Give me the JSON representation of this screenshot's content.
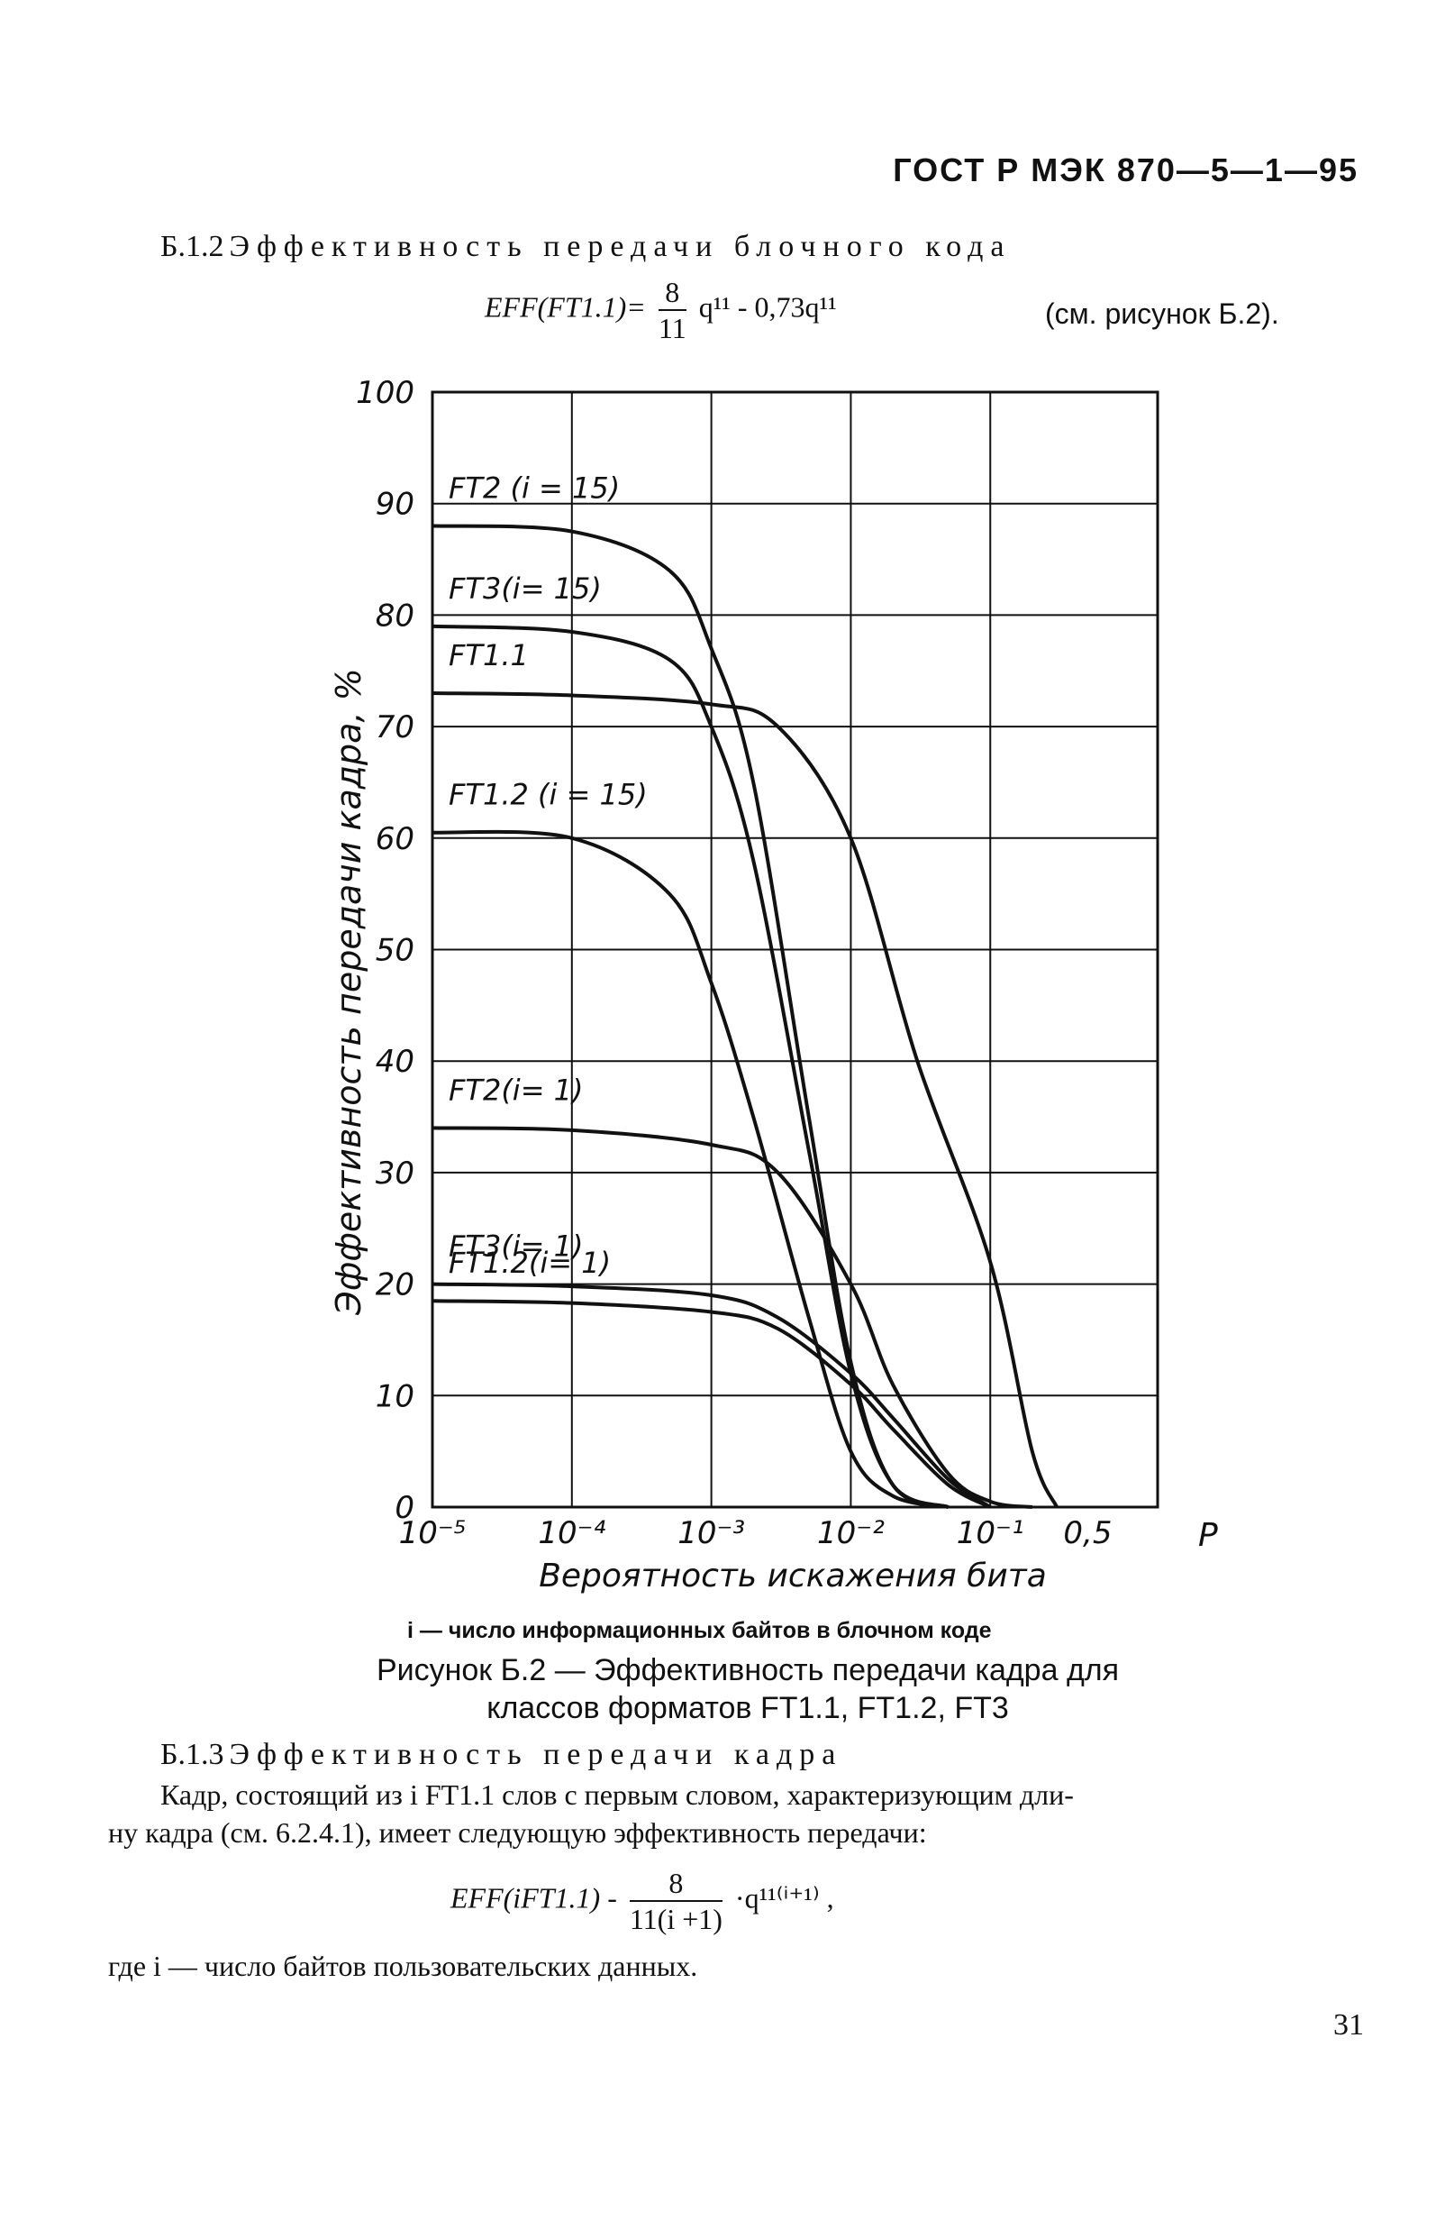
{
  "header": {
    "standard": "ГОСТ Р МЭК 870—5—1—95"
  },
  "section_b12": {
    "number": "Б.1.2",
    "title": "Эффективность передачи блочного кода",
    "formula_lhs": "EFF(FT1.1)=",
    "frac_num": "8",
    "frac_den": "11",
    "formula_rest": "q¹¹ - 0,73q¹¹",
    "reference": "(см. рисунок Б.2)."
  },
  "chart_data": {
    "type": "line",
    "ylabel": "Эффективность передачи кадра, %",
    "xlabel": "Вероятность искажения бита",
    "x_axis_unit": "P",
    "x_scale": "log",
    "xlim": [
      1e-05,
      0.5
    ],
    "ylim": [
      0,
      100
    ],
    "grid": true,
    "y_ticks": [
      "0",
      "10",
      "20",
      "30",
      "40",
      "50",
      "60",
      "70",
      "80",
      "90",
      "100"
    ],
    "x_ticks": [
      "10⁻⁵",
      "10⁻⁴",
      "10⁻³",
      "10⁻²",
      "10⁻¹",
      "0,5"
    ],
    "series": [
      {
        "name": "FT2 (i = 15)",
        "x": [
          1e-05,
          0.0001,
          0.0005,
          0.001,
          0.002,
          0.005,
          0.01,
          0.02,
          0.05
        ],
        "y": [
          88,
          87.5,
          84,
          77,
          65,
          35,
          13,
          2,
          0
        ]
      },
      {
        "name": "FT3 (i = 15)",
        "x": [
          1e-05,
          0.0001,
          0.0005,
          0.001,
          0.002,
          0.005,
          0.01,
          0.02,
          0.05
        ],
        "y": [
          79,
          78.5,
          76,
          70,
          58,
          32,
          12,
          2,
          0
        ]
      },
      {
        "name": "FT1.1",
        "x": [
          1e-05,
          0.0001,
          0.001,
          0.003,
          0.01,
          0.03,
          0.1,
          0.2,
          0.3
        ],
        "y": [
          73,
          72.8,
          72,
          70,
          60,
          40,
          22,
          5,
          0
        ]
      },
      {
        "name": "FT1.2 (i = 15)",
        "x": [
          1e-05,
          0.0001,
          0.0005,
          0.001,
          0.002,
          0.005,
          0.01,
          0.02,
          0.05
        ],
        "y": [
          60.5,
          60,
          55,
          47,
          35,
          17,
          5,
          1,
          0
        ]
      },
      {
        "name": "FT2 (i = 1)",
        "x": [
          1e-05,
          0.0001,
          0.001,
          0.003,
          0.01,
          0.02,
          0.05,
          0.1,
          0.2
        ],
        "y": [
          34,
          33.8,
          32.5,
          30,
          20,
          11,
          3,
          0.5,
          0
        ]
      },
      {
        "name": "FT3 (i = 1)",
        "x": [
          1e-05,
          0.0001,
          0.001,
          0.003,
          0.01,
          0.02,
          0.05,
          0.1
        ],
        "y": [
          20,
          19.8,
          19,
          17,
          12,
          8,
          2.5,
          0
        ]
      },
      {
        "name": "FT1.2 (i = 1)",
        "x": [
          1e-05,
          0.0001,
          0.001,
          0.003,
          0.01,
          0.02,
          0.05,
          0.1
        ],
        "y": [
          18.5,
          18.3,
          17.5,
          16,
          11,
          7,
          2,
          0
        ]
      }
    ],
    "annotations": [
      "FT2 (i = 15)",
      "FT3(i= 15)",
      "FT1.1",
      "FT1.2 (i = 15)",
      "FT2(i= 1)",
      "FT3(i= 1)",
      "FT1.2(i= 1)"
    ]
  },
  "figure": {
    "note": "i — число информационных байтов в блочном коде",
    "caption_line1": "Рисунок Б.2 — Эффективность передачи кадра для",
    "caption_line2": "классов форматов FT1.1, FT1.2, FT3"
  },
  "section_b13": {
    "number": "Б.1.3",
    "title": "Эффективность передачи кадра",
    "paragraph_line1": "Кадр, состоящий из i FT1.1 слов с первым словом, характеризующим дли-",
    "paragraph_line2": "ну кадра (см. 6.2.4.1), имеет следующую эффективность передачи:",
    "formula_lhs": "EFF(iFT1.1) -",
    "frac_num": "8",
    "frac_den": "11(i +1)",
    "formula_rest": "·q¹¹⁽ⁱ⁺¹⁾ ,",
    "where_line": "где i — число байтов пользовательских данных."
  },
  "page_number": "31"
}
